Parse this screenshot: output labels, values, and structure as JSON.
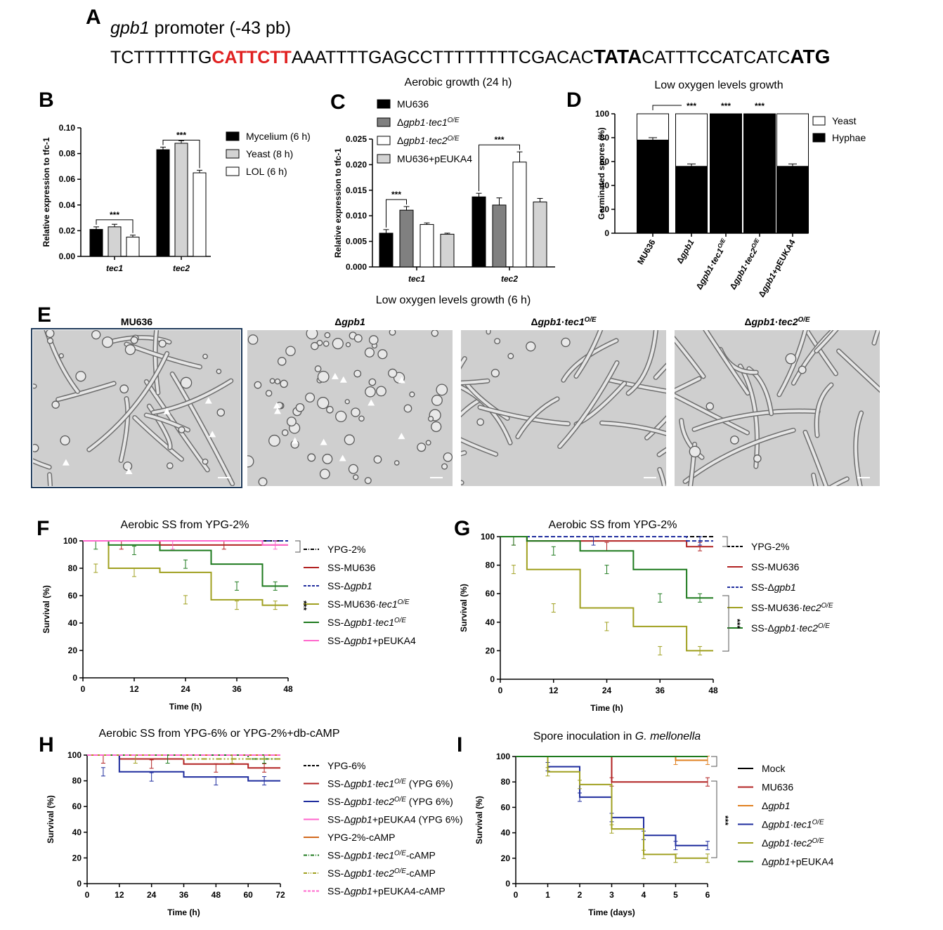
{
  "panels": {
    "A": "A",
    "B": "B",
    "C": "C",
    "D": "D",
    "E": "E",
    "F": "F",
    "G": "G",
    "H": "H",
    "I": "I"
  },
  "sequence": {
    "gene": "gpb1",
    "title_rest": " promoter (-43 pb)",
    "seq_part1": "TCTTTTTTG",
    "seq_motif": "CATTCTT",
    "seq_part2": "AAATTTTGAGCCTTTTTTTTCGACAC",
    "seq_tata": "TATA",
    "seq_part3": "CATTTCCATCATC",
    "seq_atg": "ATG",
    "motif_color": "#e02020"
  },
  "sig_label": "***",
  "chart_data": [
    {
      "id": "B",
      "type": "bar",
      "title": "",
      "ylabel": "Relative expression to tfc-1",
      "ylim": [
        0,
        0.1
      ],
      "yticks": [
        "0.00",
        "0.02",
        "0.04",
        "0.06",
        "0.08",
        "0.10"
      ],
      "categories": [
        "tec1",
        "tec2"
      ],
      "series": [
        {
          "name": "Mycelium (6 h)",
          "color": "#000000",
          "values": [
            0.021,
            0.083
          ],
          "err": [
            0.002,
            0.002
          ]
        },
        {
          "name": "Yeast (8 h)",
          "color": "#d3d3d3",
          "values": [
            0.023,
            0.088
          ],
          "err": [
            0.002,
            0.002
          ]
        },
        {
          "name": "LOL (6 h)",
          "color": "#ffffff",
          "values": [
            0.015,
            0.065
          ],
          "err": [
            0.0015,
            0.002
          ]
        }
      ],
      "legend": "right",
      "significance": [
        "***",
        "***"
      ]
    },
    {
      "id": "C",
      "type": "bar",
      "title": "Aerobic growth (24 h)",
      "ylabel": "Relative expression to tfc-1",
      "ylim": [
        0,
        0.025
      ],
      "yticks": [
        "0.000",
        "0.005",
        "0.010",
        "0.015",
        "0.020",
        "0.025"
      ],
      "categories": [
        "tec1",
        "tec2"
      ],
      "series": [
        {
          "name": "MU636",
          "color": "#000000",
          "values": [
            0.0066,
            0.0137
          ],
          "err": [
            0.0007,
            0.0007
          ]
        },
        {
          "name": "Δgpb1·tec1O/E",
          "color": "#808080",
          "values": [
            0.0111,
            0.0121
          ],
          "err": [
            0.0007,
            0.0014
          ]
        },
        {
          "name": "Δgpb1·tec2O/E",
          "color": "#ffffff",
          "values": [
            0.0083,
            0.0205
          ],
          "err": [
            0.0003,
            0.002
          ]
        },
        {
          "name": "MU636+pEUKA4",
          "color": "#d3d3d3",
          "values": [
            0.0064,
            0.0127
          ],
          "err": [
            0.0002,
            0.0007
          ]
        }
      ],
      "legend": "top-left",
      "significance": [
        "***",
        "***"
      ]
    },
    {
      "id": "D",
      "type": "bar",
      "title": "Low oxygen levels growth",
      "ylabel": "Germinated spores (%)",
      "ylim": [
        0,
        100
      ],
      "yticks": [
        "0",
        "20",
        "40",
        "60",
        "80",
        "100"
      ],
      "categories": [
        "MU636",
        "Δgpb1",
        "Δgpb1·tec1O/E",
        "Δgpb1·tec2O/E",
        "Δgpb1+pEUKA4"
      ],
      "series": [
        {
          "name": "Hyphae",
          "color": "#000000",
          "values": [
            78,
            56,
            100,
            100,
            56
          ]
        },
        {
          "name": "Yeast",
          "color": "#ffffff",
          "values": [
            22,
            44,
            0,
            0,
            44
          ]
        }
      ],
      "stacked": true,
      "legend": "right",
      "significance": [
        "",
        "***",
        "***",
        "***",
        ""
      ]
    },
    {
      "id": "F",
      "type": "line",
      "title": "Aerobic SS from YPG-2%",
      "xlabel": "Time (h)",
      "ylabel": "Survival (%)",
      "xlim": [
        0,
        48
      ],
      "ylim": [
        0,
        100
      ],
      "xticks": [
        "0",
        "12",
        "24",
        "36",
        "48"
      ],
      "yticks": [
        "0",
        "20",
        "40",
        "60",
        "80",
        "100"
      ],
      "series": [
        {
          "name": "YPG-2%",
          "color": "#000000",
          "dash": "8,3,2,3",
          "x": [
            0,
            48
          ],
          "y": [
            100,
            100
          ]
        },
        {
          "name": "SS-MU636",
          "color": "#b22222",
          "dash": "",
          "x": [
            0,
            18,
            48
          ],
          "y": [
            100,
            97,
            97
          ]
        },
        {
          "name": "SS-Δgpb1",
          "color": "#1f2d9e",
          "dash": "6,3",
          "x": [
            0,
            48
          ],
          "y": [
            100,
            100
          ]
        },
        {
          "name": "SS-MU636·tec1O/E",
          "color": "#a0a020",
          "dash": "",
          "x": [
            0,
            6,
            18,
            30,
            42,
            48
          ],
          "y": [
            100,
            80,
            77,
            57,
            53,
            53
          ]
        },
        {
          "name": "SS-Δgpb1·tec1O/E",
          "color": "#1e7a1e",
          "dash": "",
          "x": [
            0,
            6,
            18,
            30,
            42,
            48
          ],
          "y": [
            100,
            97,
            93,
            83,
            67,
            67
          ]
        },
        {
          "name": "SS-Δgpb1+pEUKA4",
          "color": "#ff66cc",
          "dash": "",
          "x": [
            0,
            42,
            48
          ],
          "y": [
            100,
            97,
            97
          ]
        }
      ],
      "legend": "right",
      "significance": "***"
    },
    {
      "id": "G",
      "type": "line",
      "title": "Aerobic SS from YPG-2%",
      "xlabel": "Time (h)",
      "ylabel": "Survival (%)",
      "xlim": [
        0,
        48
      ],
      "ylim": [
        0,
        100
      ],
      "xticks": [
        "0",
        "12",
        "24",
        "36",
        "48"
      ],
      "yticks": [
        "0",
        "20",
        "40",
        "60",
        "80",
        "100"
      ],
      "series": [
        {
          "name": "YPG-2%",
          "color": "#000000",
          "dash": "6,3",
          "x": [
            0,
            48
          ],
          "y": [
            100,
            100
          ]
        },
        {
          "name": "SS-MU636",
          "color": "#b22222",
          "dash": "",
          "x": [
            0,
            6,
            42,
            48
          ],
          "y": [
            100,
            97,
            93,
            93
          ]
        },
        {
          "name": "SS-Δgpb1",
          "color": "#1f2d9e",
          "dash": "6,3",
          "x": [
            0,
            42,
            48
          ],
          "y": [
            100,
            97,
            97
          ]
        },
        {
          "name": "SS-MU636·tec2O/E",
          "color": "#a0a020",
          "dash": "",
          "x": [
            0,
            6,
            18,
            30,
            42,
            48
          ],
          "y": [
            100,
            77,
            50,
            37,
            20,
            20
          ]
        },
        {
          "name": "SS-Δgpb1·tec2O/E",
          "color": "#1e7a1e",
          "dash": "",
          "x": [
            0,
            6,
            18,
            30,
            42,
            48
          ],
          "y": [
            100,
            97,
            90,
            77,
            57,
            57
          ]
        }
      ],
      "legend": "right",
      "significance": "***"
    },
    {
      "id": "H",
      "type": "line",
      "title": "Aerobic SS from YPG-6% or YPG-2%+db-cAMP",
      "xlabel": "Time (h)",
      "ylabel": "Survival (%)",
      "xlim": [
        0,
        72
      ],
      "ylim": [
        0,
        100
      ],
      "xticks": [
        "0",
        "12",
        "24",
        "36",
        "48",
        "60",
        "72"
      ],
      "yticks": [
        "0",
        "20",
        "40",
        "60",
        "80",
        "100"
      ],
      "series": [
        {
          "name": "YPG-6%",
          "color": "#000000",
          "dash": "6,3",
          "x": [
            0,
            72
          ],
          "y": [
            100,
            100
          ]
        },
        {
          "name": "SS-Δgpb1·tec1O/E (YPG 6%)",
          "color": "#b22222",
          "dash": "",
          "x": [
            0,
            12,
            36,
            60,
            72
          ],
          "y": [
            100,
            97,
            93,
            90,
            90
          ]
        },
        {
          "name": "SS-Δgpb1·tec2O/E (YPG 6%)",
          "color": "#1f2d9e",
          "dash": "",
          "x": [
            0,
            12,
            36,
            60,
            72
          ],
          "y": [
            100,
            87,
            83,
            80,
            80
          ]
        },
        {
          "name": "SS-Δgpb1+pEUKA4 (YPG 6%)",
          "color": "#ff66cc",
          "dash": "",
          "x": [
            0,
            72
          ],
          "y": [
            100,
            100
          ]
        },
        {
          "name": "YPG-2%-cAMP",
          "color": "#d2691e",
          "dash": "",
          "x": [
            0,
            72
          ],
          "y": [
            100,
            100
          ]
        },
        {
          "name": "SS-Δgpb1·tec1O/E-cAMP",
          "color": "#1e7a1e",
          "dash": "8,3,2,3",
          "x": [
            0,
            60,
            72
          ],
          "y": [
            100,
            97,
            97
          ]
        },
        {
          "name": "SS-Δgpb1·tec2O/E-cAMP",
          "color": "#a0a020",
          "dash": "8,3,2,3,2,3",
          "x": [
            0,
            36,
            72
          ],
          "y": [
            100,
            97,
            97
          ]
        },
        {
          "name": "SS-Δgpb1+pEUKA4-cAMP",
          "color": "#ff66cc",
          "dash": "6,3",
          "x": [
            0,
            72
          ],
          "y": [
            100,
            100
          ]
        }
      ],
      "legend": "right"
    },
    {
      "id": "I",
      "type": "line",
      "title": "Spore inoculation in G. mellonella",
      "xlabel": "Time (days)",
      "ylabel": "Survival (%)",
      "xlim": [
        0,
        6
      ],
      "ylim": [
        0,
        100
      ],
      "xticks": [
        "0",
        "1",
        "2",
        "3",
        "4",
        "5",
        "6"
      ],
      "yticks": [
        "0",
        "20",
        "40",
        "60",
        "80",
        "100"
      ],
      "series": [
        {
          "name": "Mock",
          "color": "#000000",
          "dash": "",
          "x": [
            0,
            6
          ],
          "y": [
            100,
            100
          ]
        },
        {
          "name": "MU636",
          "color": "#b22222",
          "dash": "",
          "x": [
            0,
            3,
            6
          ],
          "y": [
            100,
            80,
            80
          ]
        },
        {
          "name": "Δgpb1",
          "color": "#e08020",
          "dash": "",
          "x": [
            0,
            5,
            6
          ],
          "y": [
            100,
            97,
            97
          ]
        },
        {
          "name": "Δgpb1·tec1O/E",
          "color": "#1f2d9e",
          "dash": "",
          "x": [
            0,
            1,
            2,
            3,
            4,
            5,
            6
          ],
          "y": [
            100,
            92,
            68,
            52,
            38,
            30,
            30
          ]
        },
        {
          "name": "Δgpb1·tec2O/E",
          "color": "#a0a020",
          "dash": "",
          "x": [
            0,
            1,
            2,
            3,
            4,
            5,
            6
          ],
          "y": [
            100,
            88,
            78,
            43,
            23,
            20,
            20
          ]
        },
        {
          "name": "Δgpb1+pEUKA4",
          "color": "#1e7a1e",
          "dash": "",
          "x": [
            0,
            6
          ],
          "y": [
            100,
            100
          ]
        }
      ],
      "legend": "right",
      "significance": "***"
    }
  ],
  "panel_E": {
    "title": "Low oxygen levels growth (6 h)",
    "images": [
      {
        "label": "MU636",
        "kind": "hyphae-yeast"
      },
      {
        "label": "Δgpb1",
        "kind": "yeast"
      },
      {
        "label": "Δgpb1·tec1O/E",
        "kind": "hyphae"
      },
      {
        "label": "Δgpb1·tec2O/E",
        "kind": "hyphae"
      }
    ]
  }
}
